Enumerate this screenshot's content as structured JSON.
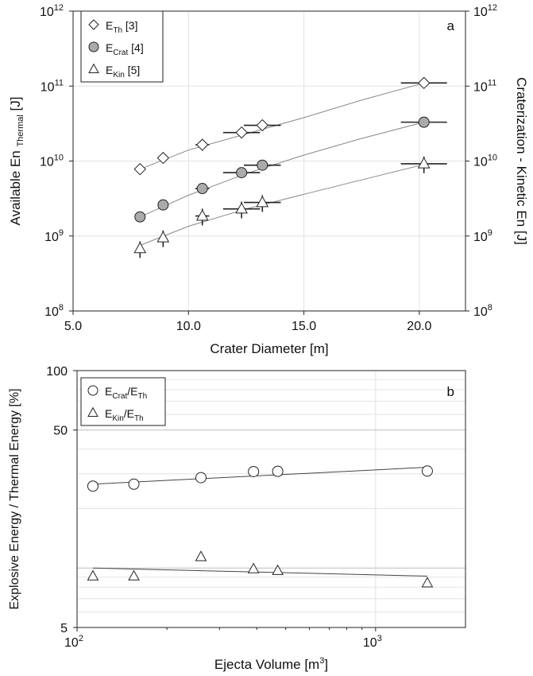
{
  "chart_data": [
    {
      "id": "a",
      "type": "scatter",
      "panel_label": "a",
      "xlabel": "Crater Diameter [m]",
      "ylabel_main": "Available En",
      "ylabel_sub": "Thermal",
      "ylabel_unit": "[J]",
      "ylabel_right": "Craterization - Kinetic En [J]",
      "xlim": [
        5,
        22
      ],
      "ylim": [
        100000000.0,
        1000000000000.0
      ],
      "yscale": "log",
      "x_ticks": [
        5,
        10,
        15,
        20
      ],
      "x_tick_labels": [
        "5.0",
        "10.0",
        "15.0",
        "20.0"
      ],
      "y_ticks": [
        {
          "value": 100000000.0,
          "base": "10",
          "exp": "8"
        },
        {
          "value": 1000000000.0,
          "base": "10",
          "exp": "9"
        },
        {
          "value": 10000000000.0,
          "base": "10",
          "exp": "10"
        },
        {
          "value": 100000000000.0,
          "base": "10",
          "exp": "11"
        },
        {
          "value": 1000000000000.0,
          "base": "10",
          "exp": "12"
        }
      ],
      "grid": true,
      "legend_position": "top-left",
      "series": [
        {
          "name_main": "E",
          "name_sub": "Th",
          "name_ref": "[3]",
          "marker": "diamond",
          "fill": "#ffffff",
          "x": [
            7.9,
            8.9,
            10.6,
            12.3,
            13.2,
            20.2
          ],
          "y": [
            7800000000.0,
            11000000000.0,
            16500000000.0,
            24000000000.0,
            30000000000.0,
            110000000000.0
          ],
          "xerr": [
            0.0,
            0.0,
            0.3,
            0.8,
            0.8,
            1.0
          ],
          "yerr_frac": [
            0,
            0,
            0,
            0.15,
            0,
            0
          ],
          "fit": [
            [
              7.9,
              7800000000.0
            ],
            [
              10.0,
              14000000000.0
            ],
            [
              12.5,
              23000000000.0
            ],
            [
              15.0,
              38000000000.0
            ],
            [
              17.5,
              65000000000.0
            ],
            [
              20.2,
              110000000000.0
            ]
          ]
        },
        {
          "name_main": "E",
          "name_sub": "Crat",
          "name_ref": "[4]",
          "marker": "circle",
          "fill": "#aaaaaa",
          "x": [
            7.9,
            8.9,
            10.6,
            12.3,
            13.2,
            20.2
          ],
          "y": [
            1800000000.0,
            2600000000.0,
            4300000000.0,
            7000000000.0,
            8800000000.0,
            33000000000.0
          ],
          "xerr": [
            0.0,
            0.0,
            0.3,
            0.8,
            0.8,
            1.0
          ],
          "yerr_frac": [
            0,
            0,
            0,
            0.15,
            0,
            0
          ],
          "fit": [
            [
              7.9,
              1800000000.0
            ],
            [
              10.0,
              3500000000.0
            ],
            [
              12.5,
              6800000000.0
            ],
            [
              15.0,
              12000000000.0
            ],
            [
              17.5,
              20000000000.0
            ],
            [
              20.2,
              33000000000.0
            ]
          ]
        },
        {
          "name_main": "E",
          "name_sub": "Kin",
          "name_ref": "[5]",
          "marker": "triangle",
          "fill": "#ffffff",
          "x": [
            7.9,
            8.9,
            10.6,
            12.3,
            13.2,
            20.2
          ],
          "y": [
            680000000.0,
            950000000.0,
            1850000000.0,
            2300000000.0,
            2800000000.0,
            9200000000.0
          ],
          "xerr": [
            0.0,
            0.0,
            0.3,
            0.8,
            0.8,
            1.0
          ],
          "yerr_frac": [
            0.25,
            0.25,
            0.25,
            0.25,
            0.25,
            0.25
          ],
          "fit": [
            [
              7.9,
              750000000.0
            ],
            [
              10.0,
              1350000000.0
            ],
            [
              12.5,
              2300000000.0
            ],
            [
              15.0,
              3600000000.0
            ],
            [
              17.5,
              5600000000.0
            ],
            [
              20.2,
              9000000000.0
            ]
          ]
        }
      ]
    },
    {
      "id": "b",
      "type": "scatter",
      "panel_label": "b",
      "xlabel_main": "Ejecta Volume [m",
      "xlabel_sup": "3",
      "xlabel_end": "]",
      "ylabel": "Explosive Energy / Thermal Energy [%]",
      "xscale": "log",
      "yscale": "log",
      "xlim": [
        100,
        2000
      ],
      "ylim": [
        5,
        100
      ],
      "x_ticks": [
        {
          "value": 100,
          "base": "10",
          "exp": "2"
        },
        {
          "value": 1000,
          "base": "10",
          "exp": "3"
        }
      ],
      "y_ticks": [
        {
          "value": 5,
          "label": "5"
        },
        {
          "value": 50,
          "label": "50"
        },
        {
          "value": 100,
          "label": "100"
        }
      ],
      "grid": true,
      "legend_position": "top-left",
      "series": [
        {
          "name_main": "E",
          "name_sub1": "Crat",
          "name_mid": "/E",
          "name_sub2": "Th",
          "marker": "circle",
          "x": [
            113,
            155,
            260,
            390,
            470,
            1490
          ],
          "y": [
            26.0,
            26.6,
            28.7,
            30.8,
            30.9,
            31.0
          ],
          "fit": [
            [
              113,
              26.6
            ],
            [
              1490,
              32.4
            ]
          ]
        },
        {
          "name_main": "E",
          "name_sub1": "Kin",
          "name_mid": "/E",
          "name_sub2": "Th",
          "marker": "triangle",
          "x": [
            113,
            155,
            260,
            390,
            470,
            1490
          ],
          "y": [
            9.1,
            9.1,
            11.4,
            9.9,
            9.7,
            8.4
          ],
          "fit": [
            [
              113,
              10.0
            ],
            [
              1490,
              9.1
            ]
          ]
        }
      ]
    }
  ]
}
